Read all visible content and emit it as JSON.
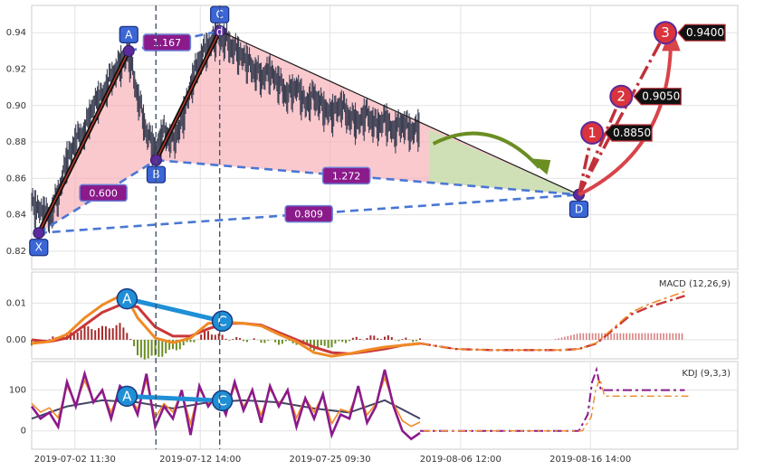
{
  "chart_data": [
    {
      "type": "candlestick-harmonic",
      "panel": "price",
      "ylim": [
        0.81,
        0.955
      ],
      "y_ticks": [
        "0.82",
        "0.84",
        "0.86",
        "0.88",
        "0.90",
        "0.92",
        "0.94"
      ],
      "grid": true,
      "pattern_points": [
        {
          "label": "X",
          "x": 0.8,
          "y": 0.83
        },
        {
          "label": "A",
          "x": 11.0,
          "y": 0.93
        },
        {
          "label": "B",
          "x": 14.1,
          "y": 0.87
        },
        {
          "label": "C",
          "x": 21.3,
          "y": 0.941
        },
        {
          "label": "D",
          "x": 62.0,
          "y": 0.851
        }
      ],
      "ratios": [
        {
          "label": "0.600",
          "from": "X",
          "to": "B"
        },
        {
          "label": "1.167",
          "from": "A",
          "to": "C"
        },
        {
          "label": "1.272",
          "from": "B",
          "to": "D"
        },
        {
          "label": "0.809",
          "from": "X",
          "to": "D"
        }
      ],
      "targets": [
        {
          "label": "1",
          "value": "0.8850",
          "y": 0.885
        },
        {
          "label": "2",
          "value": "0.9050",
          "y": 0.905
        },
        {
          "label": "3",
          "value": "0.9400",
          "y": 0.94
        }
      ],
      "price_series_note": "dense intraday bars",
      "price_series": [
        [
          0.0,
          0.845
        ],
        [
          1,
          0.842
        ],
        [
          2,
          0.838
        ],
        [
          3,
          0.85
        ],
        [
          4,
          0.87
        ],
        [
          5,
          0.88
        ],
        [
          6,
          0.885
        ],
        [
          7,
          0.9
        ],
        [
          8,
          0.905
        ],
        [
          9,
          0.915
        ],
        [
          10,
          0.922
        ],
        [
          11,
          0.928
        ],
        [
          12,
          0.905
        ],
        [
          13,
          0.885
        ],
        [
          14,
          0.875
        ],
        [
          15,
          0.885
        ],
        [
          16,
          0.88
        ],
        [
          17,
          0.89
        ],
        [
          18,
          0.91
        ],
        [
          19,
          0.925
        ],
        [
          20,
          0.932
        ],
        [
          21,
          0.938
        ],
        [
          22,
          0.935
        ],
        [
          23,
          0.93
        ],
        [
          24,
          0.926
        ],
        [
          25,
          0.92
        ],
        [
          26,
          0.915
        ],
        [
          27,
          0.918
        ],
        [
          28,
          0.912
        ],
        [
          29,
          0.905
        ],
        [
          30,
          0.91
        ],
        [
          31,
          0.9
        ],
        [
          32,
          0.905
        ],
        [
          33,
          0.898
        ],
        [
          34,
          0.895
        ],
        [
          35,
          0.9
        ],
        [
          36,
          0.893
        ],
        [
          37,
          0.89
        ],
        [
          38,
          0.895
        ],
        [
          39,
          0.888
        ],
        [
          40,
          0.892
        ],
        [
          41,
          0.885
        ],
        [
          42,
          0.89
        ],
        [
          43,
          0.885
        ],
        [
          44,
          0.888
        ]
      ],
      "x_ticks": [
        {
          "label": "2019-07-02 11:30",
          "x": 4.9
        },
        {
          "label": "2019-07-12 14:00",
          "x": 19.1
        },
        {
          "label": "2019-07-25 09:30",
          "x": 33.8
        },
        {
          "label": "2019-08-06 12:00",
          "x": 48.6
        },
        {
          "label": "2019-08-16 14:00",
          "x": 63.3
        }
      ]
    },
    {
      "type": "bar-line",
      "panel": "macd",
      "title": "MACD (12,26,9)",
      "ylim": [
        -0.0052,
        0.0185
      ],
      "y_ticks": [
        "0.00",
        "0.01"
      ],
      "markers": [
        {
          "label": "A",
          "x": 10.8,
          "y": 0.0112
        },
        {
          "label": "C",
          "x": 21.6,
          "y": 0.0051
        }
      ],
      "macd_line": [
        [
          0,
          -0.001
        ],
        [
          2,
          -0.0005
        ],
        [
          4,
          0.0015
        ],
        [
          6,
          0.006
        ],
        [
          8,
          0.0095
        ],
        [
          10,
          0.012
        ],
        [
          11,
          0.0105
        ],
        [
          12,
          0.006
        ],
        [
          14,
          0.0005
        ],
        [
          16,
          -0.0008
        ],
        [
          18,
          0.0005
        ],
        [
          20,
          0.0045
        ],
        [
          22,
          0.0048
        ],
        [
          24,
          0.0045
        ],
        [
          26,
          0.0038
        ],
        [
          28,
          0.0015
        ],
        [
          30,
          -0.0005
        ],
        [
          32,
          -0.0035
        ],
        [
          34,
          -0.0045
        ],
        [
          36,
          -0.0038
        ],
        [
          38,
          -0.0028
        ],
        [
          40,
          -0.002
        ],
        [
          42,
          -0.0015
        ],
        [
          44,
          -0.001
        ]
      ],
      "signal_line": [
        [
          0,
          0.0
        ],
        [
          2,
          -0.0005
        ],
        [
          4,
          0.0005
        ],
        [
          6,
          0.004
        ],
        [
          8,
          0.0075
        ],
        [
          10,
          0.0095
        ],
        [
          12,
          0.009
        ],
        [
          14,
          0.0035
        ],
        [
          16,
          0.001
        ],
        [
          18,
          0.001
        ],
        [
          20,
          0.003
        ],
        [
          22,
          0.0045
        ],
        [
          24,
          0.0045
        ],
        [
          26,
          0.004
        ],
        [
          28,
          0.002
        ],
        [
          30,
          0.0
        ],
        [
          32,
          -0.002
        ],
        [
          34,
          -0.0035
        ],
        [
          36,
          -0.0038
        ],
        [
          38,
          -0.0032
        ],
        [
          40,
          -0.0025
        ],
        [
          42,
          -0.0015
        ],
        [
          44,
          -0.001
        ]
      ],
      "projection": [
        [
          44,
          -0.001
        ],
        [
          48,
          -0.0025
        ],
        [
          52,
          -0.0028
        ],
        [
          56,
          -0.0028
        ],
        [
          60,
          -0.0028
        ],
        [
          62,
          -0.0025
        ],
        [
          64,
          -0.001
        ],
        [
          66,
          0.003
        ],
        [
          68,
          0.007
        ],
        [
          70,
          0.009
        ],
        [
          72,
          0.0105
        ],
        [
          74,
          0.012
        ]
      ],
      "projection_bars_range": [
        59,
        74
      ]
    },
    {
      "type": "line",
      "panel": "kdj",
      "title": "KDJ (9,3,3)",
      "ylim": [
        -45,
        170
      ],
      "y_ticks": [
        "0",
        "100"
      ],
      "markers": [
        {
          "label": "A",
          "x": 10.8,
          "y": 85
        },
        {
          "label": "C",
          "x": 21.6,
          "y": 74
        }
      ],
      "j_line": [
        [
          0,
          60
        ],
        [
          1,
          30
        ],
        [
          2,
          45
        ],
        [
          3,
          10
        ],
        [
          4,
          120
        ],
        [
          5,
          60
        ],
        [
          6,
          140
        ],
        [
          7,
          70
        ],
        [
          8,
          100
        ],
        [
          9,
          30
        ],
        [
          10,
          110
        ],
        [
          11,
          90
        ],
        [
          12,
          40
        ],
        [
          13,
          140
        ],
        [
          14,
          10
        ],
        [
          15,
          60
        ],
        [
          16,
          30
        ],
        [
          17,
          100
        ],
        [
          18,
          -10
        ],
        [
          19,
          110
        ],
        [
          20,
          60
        ],
        [
          21,
          90
        ],
        [
          22,
          40
        ],
        [
          23,
          120
        ],
        [
          24,
          50
        ],
        [
          25,
          100
        ],
        [
          26,
          20
        ],
        [
          27,
          110
        ],
        [
          28,
          60
        ],
        [
          29,
          100
        ],
        [
          30,
          10
        ],
        [
          31,
          80
        ],
        [
          32,
          30
        ],
        [
          33,
          90
        ],
        [
          34,
          -10
        ],
        [
          35,
          40
        ],
        [
          36,
          30
        ],
        [
          37,
          110
        ],
        [
          38,
          20
        ],
        [
          39,
          60
        ],
        [
          40,
          150
        ],
        [
          41,
          60
        ],
        [
          42,
          0
        ],
        [
          43,
          -20
        ],
        [
          44,
          -5
        ]
      ],
      "d_line": [
        [
          0,
          30
        ],
        [
          4,
          60
        ],
        [
          8,
          75
        ],
        [
          12,
          70
        ],
        [
          16,
          55
        ],
        [
          20,
          70
        ],
        [
          24,
          75
        ],
        [
          28,
          70
        ],
        [
          32,
          55
        ],
        [
          36,
          45
        ],
        [
          40,
          75
        ],
        [
          44,
          30
        ]
      ],
      "projection": [
        [
          44,
          0
        ],
        [
          48,
          0
        ],
        [
          52,
          0
        ],
        [
          56,
          0
        ],
        [
          60,
          0
        ],
        [
          62,
          0
        ],
        [
          63,
          40
        ],
        [
          63.5,
          120
        ],
        [
          64,
          150
        ],
        [
          64.5,
          100
        ],
        [
          66,
          100
        ],
        [
          70,
          100
        ],
        [
          74,
          100
        ]
      ]
    }
  ]
}
